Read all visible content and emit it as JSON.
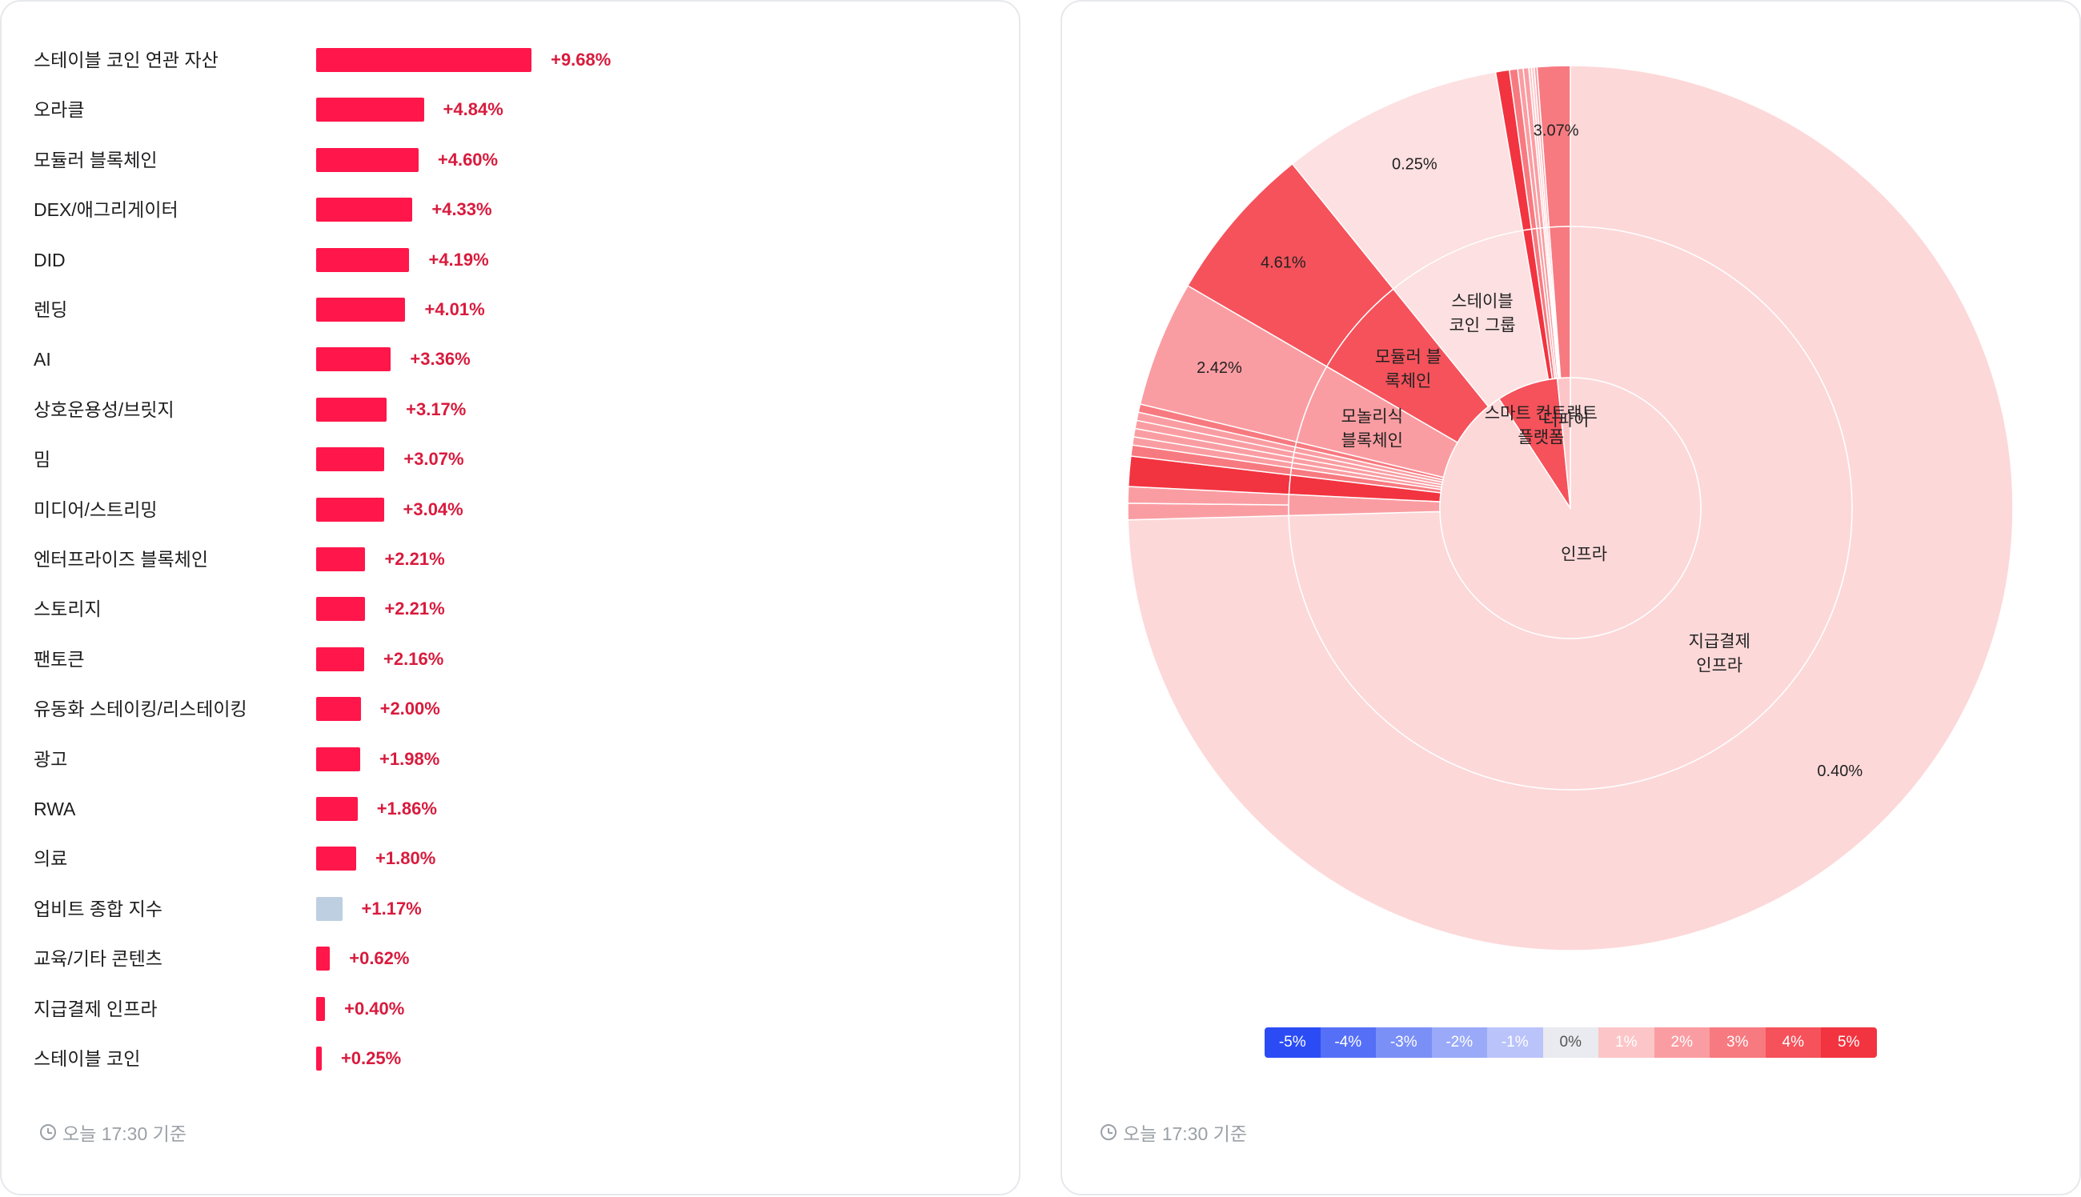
{
  "bar_panel": {
    "footer": "오늘 17:30 기준"
  },
  "sunburst_panel": {
    "footer": "오늘 17:30 기준",
    "legend": [
      {
        "label": "-5%",
        "color": "#2b4cf5"
      },
      {
        "label": "-4%",
        "color": "#5570f6"
      },
      {
        "label": "-3%",
        "color": "#7b90f7"
      },
      {
        "label": "-2%",
        "color": "#9aaaf8"
      },
      {
        "label": "-1%",
        "color": "#bac4fa"
      },
      {
        "label": "0%",
        "color": "#e9ebf0",
        "text_color": "#555555"
      },
      {
        "label": "1%",
        "color": "#fcc6c9"
      },
      {
        "label": "2%",
        "color": "#fa9da2"
      },
      {
        "label": "3%",
        "color": "#f77a80"
      },
      {
        "label": "4%",
        "color": "#f5525b"
      },
      {
        "label": "5%",
        "color": "#f23440"
      }
    ]
  },
  "chart_data": [
    {
      "type": "bar",
      "orientation": "horizontal",
      "bar_color": "#ff164a",
      "index_bar_color": "#bfcfe2",
      "categories": [
        "스테이블 코인 연관 자산",
        "오라클",
        "모듈러 블록체인",
        "DEX/애그리게이터",
        "DID",
        "렌딩",
        "AI",
        "상호운용성/브릿지",
        "밈",
        "미디어/스트리밍",
        "엔터프라이즈 블록체인",
        "스토리지",
        "팬토큰",
        "유동화 스테이킹/리스테이킹",
        "광고",
        "RWA",
        "의료",
        "업비트 종합 지수",
        "교육/기타 콘텐츠",
        "지급결제 인프라",
        "스테이블 코인"
      ],
      "values": [
        9.68,
        4.84,
        4.6,
        4.33,
        4.19,
        4.01,
        3.36,
        3.17,
        3.07,
        3.04,
        2.21,
        2.21,
        2.16,
        2.0,
        1.98,
        1.86,
        1.8,
        1.17,
        0.62,
        0.4,
        0.25
      ],
      "value_labels": [
        "+9.68%",
        "+4.84%",
        "+4.60%",
        "+4.33%",
        "+4.19%",
        "+4.01%",
        "+3.36%",
        "+3.17%",
        "+3.07%",
        "+3.04%",
        "+2.21%",
        "+2.21%",
        "+2.16%",
        "+2.00%",
        "+1.98%",
        "+1.86%",
        "+1.80%",
        "+1.17%",
        "+0.62%",
        "+0.40%",
        "+0.25%"
      ],
      "index_category": "업비트 종합 지수"
    },
    {
      "type": "sunburst",
      "rings": {
        "inner": [
          {
            "label": "인프라",
            "share": 0.908,
            "color": "#fdd8d9"
          },
          {
            "label": "스마트 컨트랙트 플랫폼",
            "share": 0.076,
            "color": "#f5525b"
          },
          {
            "label": "디파이",
            "share": 0.016,
            "color": "#fcc6c9"
          }
        ],
        "middle": [
          {
            "label": "지급결제 인프라",
            "share": 0.745,
            "color": "#fdd8d9"
          },
          {
            "label": "",
            "share": 0.012,
            "color": "#fa9da2"
          },
          {
            "label": "",
            "share": 0.011,
            "color": "#f23440"
          },
          {
            "label": "",
            "share": 0.004,
            "color": "#f77a80"
          },
          {
            "label": "",
            "share": 0.003,
            "color": "#fa9da2"
          },
          {
            "label": "",
            "share": 0.003,
            "color": "#fa9da2"
          },
          {
            "label": "",
            "share": 0.003,
            "color": "#fa9da2"
          },
          {
            "label": "",
            "share": 0.003,
            "color": "#fa9da2"
          },
          {
            "label": "",
            "share": 0.003,
            "color": "#f77a80"
          },
          {
            "label": "모놀리식 블록체인",
            "share": 0.046,
            "color": "#fa9da2"
          },
          {
            "label": "모듈러 블록체인",
            "share": 0.058,
            "color": "#f5525b"
          },
          {
            "label": "스테이블 코인 그룹",
            "share": 0.081,
            "color": "#fde0e1"
          },
          {
            "label": "",
            "share": 0.005,
            "color": "#f23440"
          },
          {
            "label": "",
            "share": 0.003,
            "color": "#f77a80"
          },
          {
            "label": "",
            "share": 0.002,
            "color": "#fa9da2"
          },
          {
            "label": "",
            "share": 0.002,
            "color": "#fa9da2"
          },
          {
            "label": "",
            "share": 0.001,
            "color": "#fcc6c9"
          },
          {
            "label": "",
            "share": 0.001,
            "color": "#fcc6c9"
          },
          {
            "label": "",
            "share": 0.001,
            "color": "#fa9da2"
          },
          {
            "label": "",
            "share": 0.012,
            "color": "#f77a80"
          }
        ],
        "outer": [
          {
            "label": "0.40%",
            "share": 0.745,
            "color": "#fdd8d9"
          },
          {
            "label": "",
            "share": 0.006,
            "color": "#fa9da2"
          },
          {
            "label": "",
            "share": 0.006,
            "color": "#fa9da2"
          },
          {
            "label": "",
            "share": 0.011,
            "color": "#f23440"
          },
          {
            "label": "",
            "share": 0.004,
            "color": "#f77a80"
          },
          {
            "label": "",
            "share": 0.003,
            "color": "#fa9da2"
          },
          {
            "label": "",
            "share": 0.003,
            "color": "#fa9da2"
          },
          {
            "label": "",
            "share": 0.003,
            "color": "#fa9da2"
          },
          {
            "label": "",
            "share": 0.003,
            "color": "#fa9da2"
          },
          {
            "label": "",
            "share": 0.003,
            "color": "#f77a80"
          },
          {
            "label": "2.42%",
            "share": 0.046,
            "color": "#fa9da2"
          },
          {
            "label": "4.61%",
            "share": 0.058,
            "color": "#f5525b"
          },
          {
            "label": "0.25%",
            "share": 0.081,
            "color": "#fde0e1"
          },
          {
            "label": "",
            "share": 0.005,
            "color": "#f23440"
          },
          {
            "label": "",
            "share": 0.003,
            "color": "#f77a80"
          },
          {
            "label": "",
            "share": 0.002,
            "color": "#fa9da2"
          },
          {
            "label": "",
            "share": 0.002,
            "color": "#fa9da2"
          },
          {
            "label": "",
            "share": 0.001,
            "color": "#fcc6c9"
          },
          {
            "label": "",
            "share": 0.001,
            "color": "#fcc6c9"
          },
          {
            "label": "",
            "share": 0.001,
            "color": "#fa9da2"
          },
          {
            "label": "3.07%",
            "share": 0.012,
            "color": "#f77a80"
          }
        ]
      }
    }
  ]
}
